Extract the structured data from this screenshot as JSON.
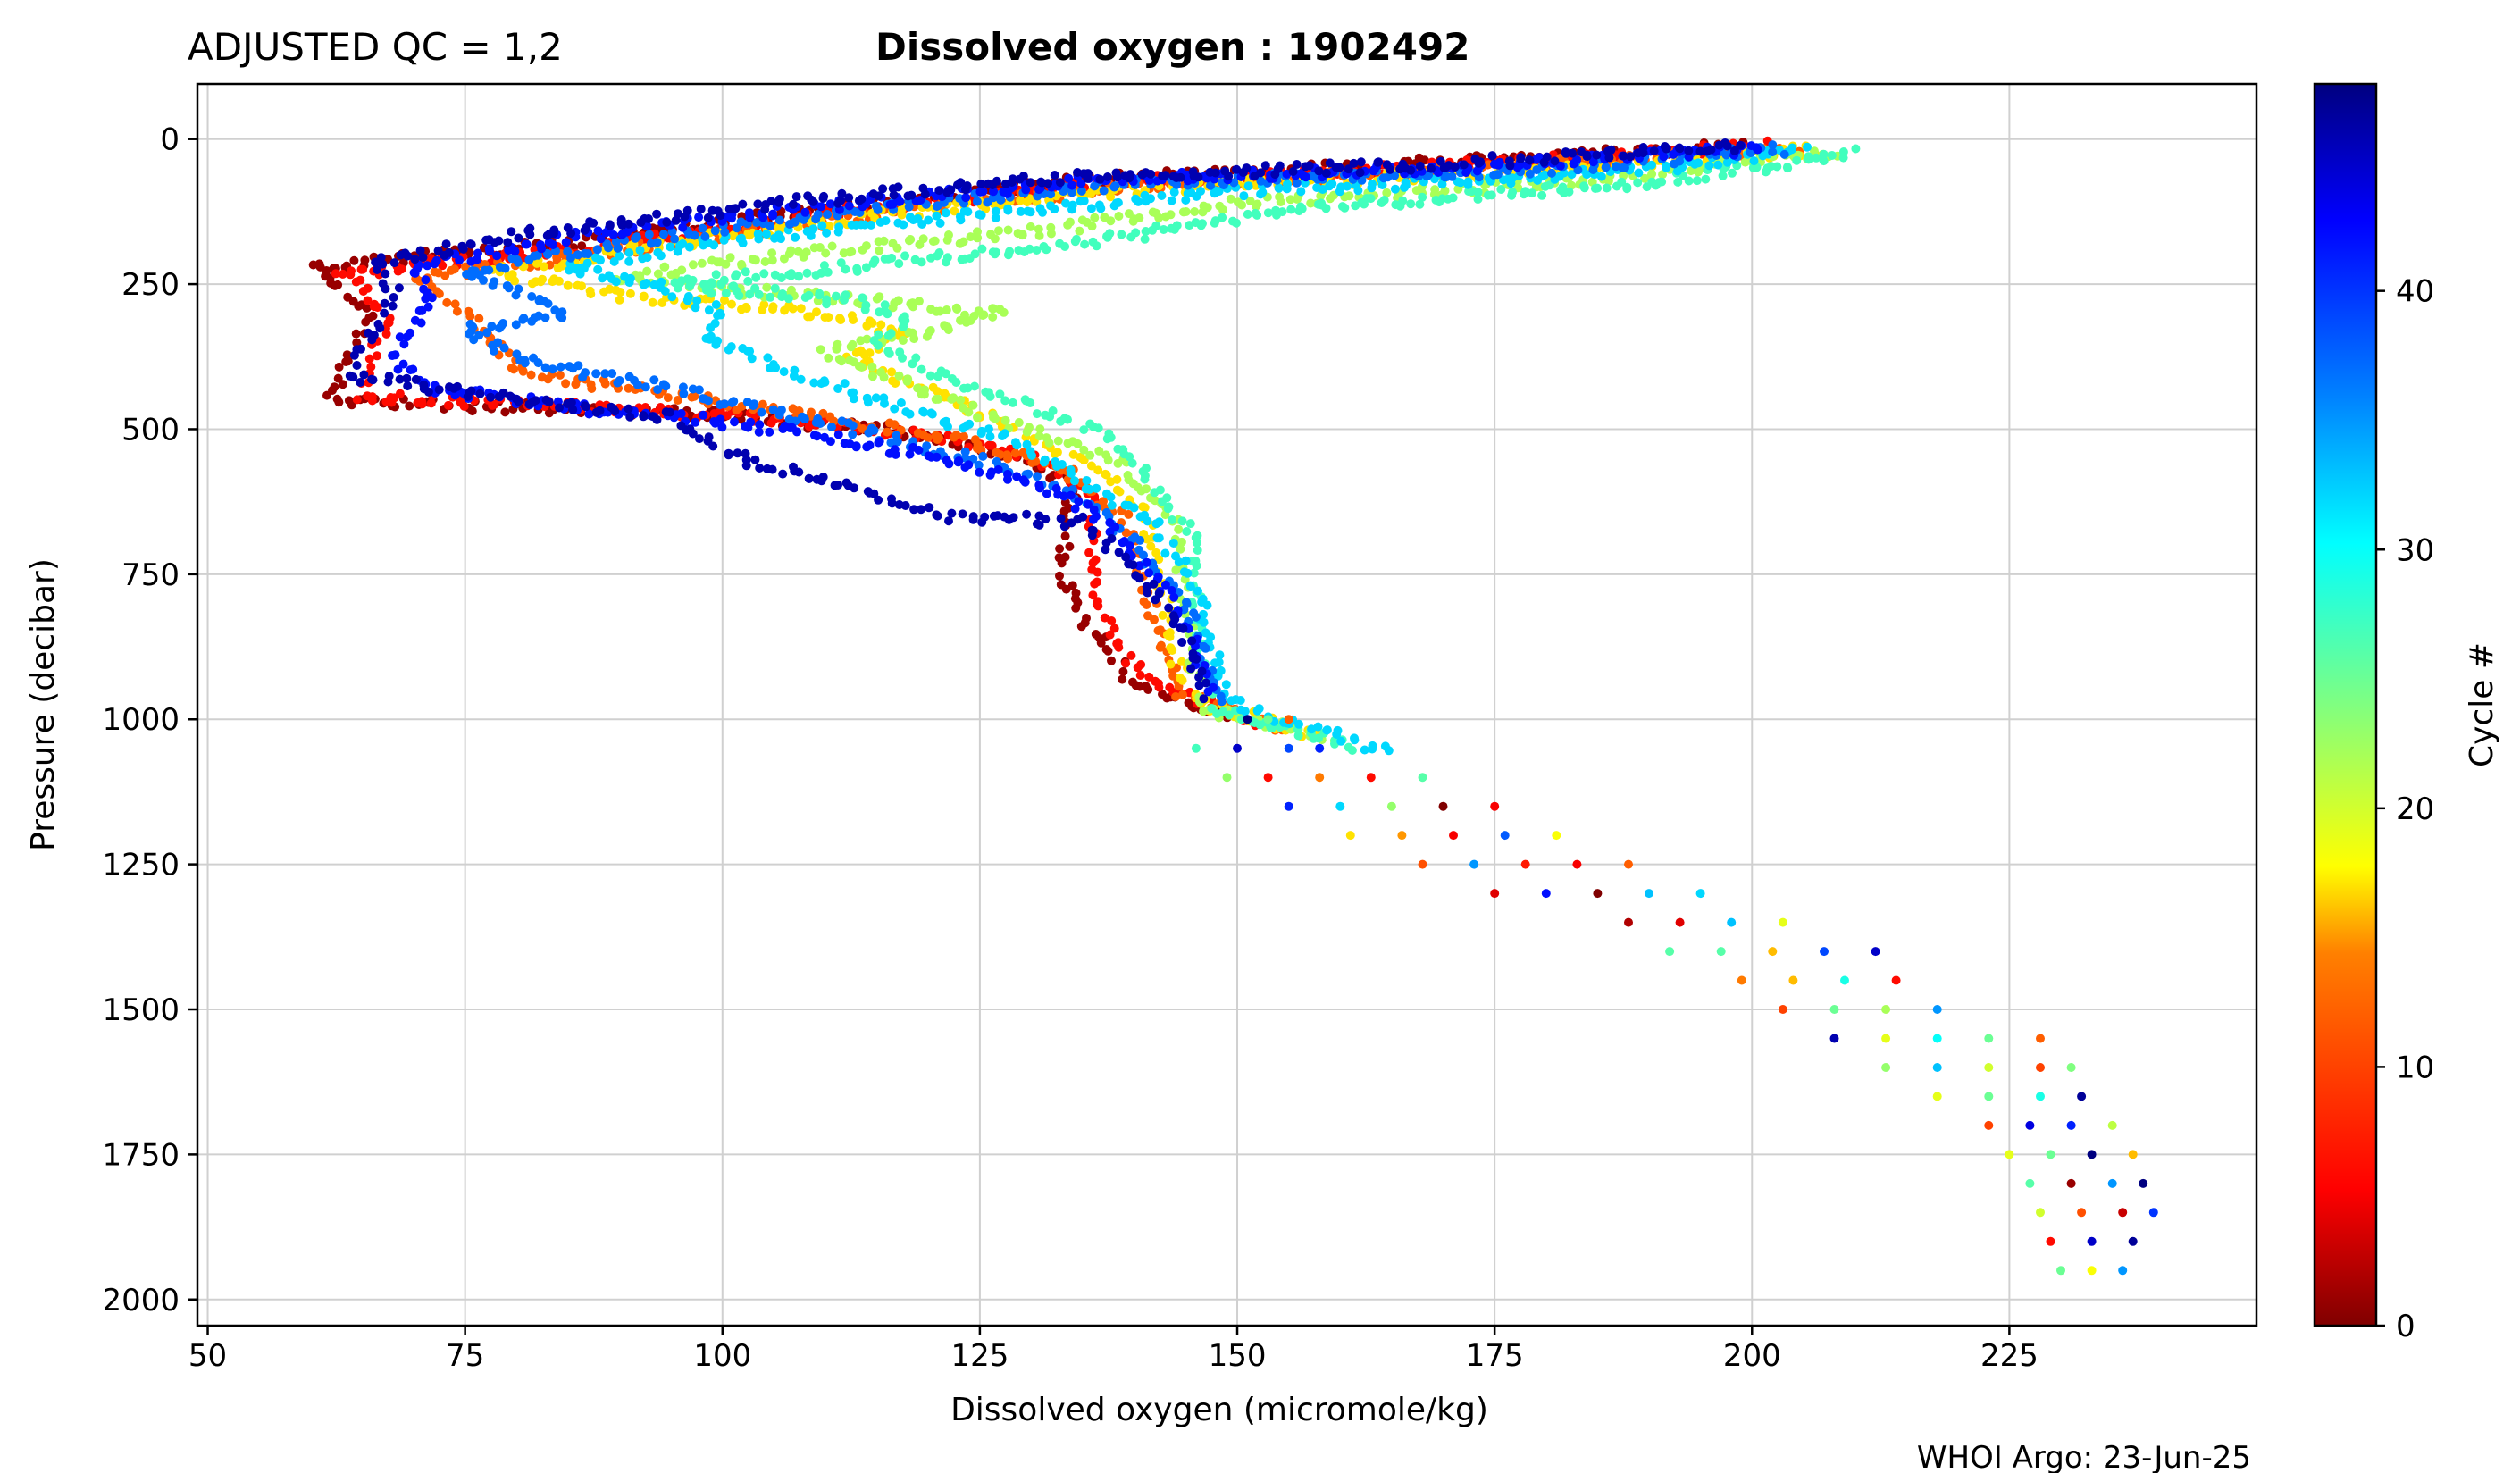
{
  "chart_data": {
    "type": "scatter",
    "title": "Dissolved oxygen : 1902492",
    "subtitle": "ADJUSTED QC = 1,2",
    "xlabel": "Dissolved oxygen  (micromole/kg)",
    "ylabel": "Pressure  (decibar)",
    "credit": "WHOI Argo: 23-Jun-25",
    "xlim": [
      49,
      249
    ],
    "ylim": [
      2045,
      -95
    ],
    "y_inverted": true,
    "grid": true,
    "xticks": [
      50,
      75,
      100,
      125,
      150,
      175,
      200,
      225
    ],
    "yticks": [
      0,
      250,
      500,
      750,
      1000,
      1250,
      1500,
      1750,
      2000
    ],
    "colorbar": {
      "label": "Cycle #",
      "colormap": "jet-reversed",
      "range": [
        0,
        48
      ],
      "ticks": [
        0,
        10,
        20,
        30,
        40
      ],
      "colors": [
        "#800000",
        "#ff0000",
        "#ff8000",
        "#ffff00",
        "#80ff80",
        "#00ffff",
        "#0080ff",
        "#0000ff",
        "#000080"
      ]
    },
    "profiles": [
      {
        "cycle": 1,
        "points": [
          [
            200,
            10
          ],
          [
            170,
            40
          ],
          [
            135,
            70
          ],
          [
            110,
            120
          ],
          [
            85,
            180
          ],
          [
            60,
            220
          ],
          [
            66,
            300
          ],
          [
            64,
            360
          ],
          [
            62,
            450
          ],
          [
            75,
            460
          ],
          [
            95,
            470
          ],
          [
            115,
            500
          ],
          [
            128,
            540
          ],
          [
            134,
            600
          ],
          [
            133,
            750
          ],
          [
            136,
            850
          ],
          [
            140,
            940
          ],
          [
            150,
            1000
          ]
        ]
      },
      {
        "cycle": 6,
        "points": [
          [
            202,
            12
          ],
          [
            172,
            45
          ],
          [
            138,
            75
          ],
          [
            112,
            125
          ],
          [
            88,
            185
          ],
          [
            63,
            230
          ],
          [
            68,
            310
          ],
          [
            66,
            370
          ],
          [
            65,
            445
          ],
          [
            80,
            455
          ],
          [
            100,
            475
          ],
          [
            118,
            505
          ],
          [
            130,
            545
          ],
          [
            136,
            610
          ],
          [
            136,
            760
          ],
          [
            138,
            860
          ],
          [
            141,
            930
          ],
          [
            152,
            1010
          ]
        ]
      },
      {
        "cycle": 12,
        "points": [
          [
            204,
            15
          ],
          [
            175,
            50
          ],
          [
            140,
            80
          ],
          [
            115,
            130
          ],
          [
            90,
            190
          ],
          [
            70,
            240
          ],
          [
            75,
            300
          ],
          [
            78,
            350
          ],
          [
            80,
            400
          ],
          [
            95,
            440
          ],
          [
            110,
            480
          ],
          [
            124,
            520
          ],
          [
            133,
            570
          ],
          [
            139,
            650
          ],
          [
            141,
            780
          ],
          [
            143,
            870
          ],
          [
            144,
            950
          ],
          [
            155,
            1020
          ]
        ]
      },
      {
        "cycle": 17,
        "points": [
          [
            206,
            18
          ],
          [
            180,
            55
          ],
          [
            142,
            85
          ],
          [
            118,
            125
          ],
          [
            95,
            180
          ],
          [
            78,
            230
          ],
          [
            90,
            270
          ],
          [
            110,
            300
          ],
          [
            118,
            340
          ],
          [
            112,
            380
          ],
          [
            120,
            430
          ],
          [
            128,
            500
          ],
          [
            136,
            560
          ],
          [
            141,
            640
          ],
          [
            143,
            790
          ],
          [
            144,
            900
          ],
          [
            146,
            970
          ],
          [
            158,
            1030
          ]
        ]
      },
      {
        "cycle": 22,
        "points": [
          [
            208,
            20
          ],
          [
            185,
            70
          ],
          [
            150,
            110
          ],
          [
            130,
            160
          ],
          [
            105,
            200
          ],
          [
            90,
            240
          ],
          [
            108,
            270
          ],
          [
            127,
            300
          ],
          [
            120,
            330
          ],
          [
            110,
            370
          ],
          [
            118,
            420
          ],
          [
            128,
            490
          ],
          [
            138,
            550
          ],
          [
            144,
            650
          ],
          [
            145,
            800
          ],
          [
            146,
            910
          ],
          [
            147,
            980
          ],
          [
            160,
            1040
          ]
        ]
      },
      {
        "cycle": 27,
        "points": [
          [
            210,
            25
          ],
          [
            190,
            75
          ],
          [
            155,
            120
          ],
          [
            135,
            180
          ],
          [
            112,
            220
          ],
          [
            95,
            250
          ],
          [
            113,
            280
          ],
          [
            118,
            310
          ],
          [
            115,
            350
          ],
          [
            120,
            400
          ],
          [
            130,
            460
          ],
          [
            138,
            520
          ],
          [
            142,
            600
          ],
          [
            146,
            690
          ],
          [
            146,
            810
          ],
          [
            147,
            920
          ],
          [
            148,
            985
          ],
          [
            162,
            1050
          ]
        ]
      },
      {
        "cycle": 32,
        "points": [
          [
            205,
            22
          ],
          [
            185,
            60
          ],
          [
            150,
            90
          ],
          [
            125,
            130
          ],
          [
            100,
            175
          ],
          [
            85,
            220
          ],
          [
            95,
            260
          ],
          [
            100,
            300
          ],
          [
            98,
            340
          ],
          [
            105,
            390
          ],
          [
            115,
            450
          ],
          [
            127,
            510
          ],
          [
            134,
            580
          ],
          [
            142,
            660
          ],
          [
            146,
            780
          ],
          [
            148,
            900
          ],
          [
            149,
            970
          ],
          [
            165,
            1060
          ]
        ]
      },
      {
        "cycle": 37,
        "points": [
          [
            203,
            18
          ],
          [
            178,
            55
          ],
          [
            140,
            75
          ],
          [
            115,
            120
          ],
          [
            92,
            175
          ],
          [
            75,
            225
          ],
          [
            80,
            260
          ],
          [
            85,
            300
          ],
          [
            75,
            330
          ],
          [
            80,
            380
          ],
          [
            95,
            430
          ],
          [
            110,
            490
          ],
          [
            122,
            540
          ],
          [
            133,
            600
          ],
          [
            140,
            690
          ],
          [
            145,
            800
          ],
          [
            147,
            900
          ],
          [
            149,
            980
          ]
        ]
      },
      {
        "cycle": 42,
        "points": [
          [
            201,
            15
          ],
          [
            172,
            50
          ],
          [
            137,
            70
          ],
          [
            110,
            115
          ],
          [
            85,
            170
          ],
          [
            70,
            220
          ],
          [
            72,
            270
          ],
          [
            70,
            320
          ],
          [
            68,
            380
          ],
          [
            72,
            430
          ],
          [
            90,
            470
          ],
          [
            106,
            500
          ],
          [
            118,
            540
          ],
          [
            128,
            580
          ],
          [
            136,
            640
          ],
          [
            142,
            750
          ],
          [
            146,
            880
          ],
          [
            148,
            960
          ]
        ]
      },
      {
        "cycle": 46,
        "points": [
          [
            199,
            12
          ],
          [
            168,
            45
          ],
          [
            134,
            65
          ],
          [
            106,
            110
          ],
          [
            80,
            165
          ],
          [
            66,
            215
          ],
          [
            68,
            260
          ],
          [
            66,
            330
          ],
          [
            64,
            410
          ],
          [
            78,
            440
          ],
          [
            95,
            480
          ],
          [
            100,
            540
          ],
          [
            112,
            600
          ],
          [
            122,
            650
          ],
          [
            135,
            660
          ],
          [
            140,
            740
          ],
          [
            145,
            860
          ],
          [
            147,
            970
          ]
        ]
      }
    ],
    "deep_points": [
      [
        151,
        1000
      ],
      [
        153,
        1000
      ],
      [
        155,
        1000
      ],
      [
        146,
        1050
      ],
      [
        150,
        1050
      ],
      [
        155,
        1050
      ],
      [
        158,
        1050
      ],
      [
        149,
        1100
      ],
      [
        153,
        1100
      ],
      [
        158,
        1100
      ],
      [
        163,
        1100
      ],
      [
        168,
        1100
      ],
      [
        155,
        1150
      ],
      [
        160,
        1150
      ],
      [
        165,
        1150
      ],
      [
        170,
        1150
      ],
      [
        175,
        1150
      ],
      [
        161,
        1200
      ],
      [
        166,
        1200
      ],
      [
        171,
        1200
      ],
      [
        176,
        1200
      ],
      [
        181,
        1200
      ],
      [
        168,
        1250
      ],
      [
        173,
        1250
      ],
      [
        178,
        1250
      ],
      [
        183,
        1250
      ],
      [
        188,
        1250
      ],
      [
        175,
        1300
      ],
      [
        180,
        1300
      ],
      [
        185,
        1300
      ],
      [
        190,
        1300
      ],
      [
        195,
        1300
      ],
      [
        188,
        1350
      ],
      [
        193,
        1350
      ],
      [
        198,
        1350
      ],
      [
        203,
        1350
      ],
      [
        192,
        1400
      ],
      [
        197,
        1400
      ],
      [
        202,
        1400
      ],
      [
        207,
        1400
      ],
      [
        212,
        1400
      ],
      [
        199,
        1450
      ],
      [
        204,
        1450
      ],
      [
        209,
        1450
      ],
      [
        214,
        1450
      ],
      [
        203,
        1500
      ],
      [
        208,
        1500
      ],
      [
        213,
        1500
      ],
      [
        218,
        1500
      ],
      [
        208,
        1550
      ],
      [
        213,
        1550
      ],
      [
        218,
        1550
      ],
      [
        223,
        1550
      ],
      [
        228,
        1550
      ],
      [
        213,
        1600
      ],
      [
        218,
        1600
      ],
      [
        223,
        1600
      ],
      [
        228,
        1600
      ],
      [
        231,
        1600
      ],
      [
        218,
        1650
      ],
      [
        223,
        1650
      ],
      [
        228,
        1650
      ],
      [
        232,
        1650
      ],
      [
        223,
        1700
      ],
      [
        227,
        1700
      ],
      [
        231,
        1700
      ],
      [
        235,
        1700
      ],
      [
        225,
        1750
      ],
      [
        229,
        1750
      ],
      [
        233,
        1750
      ],
      [
        237,
        1750
      ],
      [
        227,
        1800
      ],
      [
        231,
        1800
      ],
      [
        235,
        1800
      ],
      [
        238,
        1800
      ],
      [
        228,
        1850
      ],
      [
        232,
        1850
      ],
      [
        236,
        1850
      ],
      [
        239,
        1850
      ],
      [
        229,
        1900
      ],
      [
        233,
        1900
      ],
      [
        237,
        1900
      ],
      [
        230,
        1950
      ],
      [
        233,
        1950
      ],
      [
        236,
        1950
      ]
    ]
  }
}
